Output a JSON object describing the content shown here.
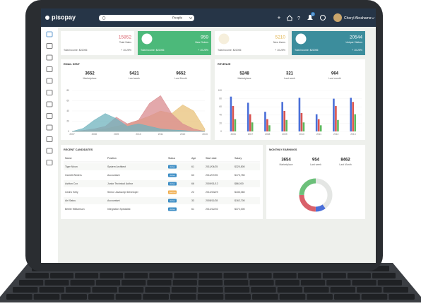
{
  "header": {
    "logo": "pisopay",
    "search_filter": "People",
    "user_name": "Cheryl Abrahams",
    "notification_count": "2"
  },
  "stats": [
    {
      "value": "15852",
      "label": "Total Sales",
      "income": "Total Income: $22006",
      "change": "+ 10.25%"
    },
    {
      "value": "959",
      "label": "New Orders",
      "income": "Total Income: $22006",
      "change": "+ 10.25%"
    },
    {
      "value": "5210",
      "label": "New Users",
      "income": "Total Income: $22006",
      "change": "+ 10.25%"
    },
    {
      "value": "20544",
      "label": "Unique Visitors",
      "income": "Total Income: $22006",
      "change": "+ 10.25%"
    }
  ],
  "email_sent": {
    "title": "EMAIL SENT",
    "summary": [
      {
        "value": 3652,
        "label": "Marketplace"
      },
      {
        "value": 5421,
        "label": "Last week"
      },
      {
        "value": 9652,
        "label": "Last Month"
      }
    ],
    "chart": {
      "type": "area",
      "x": [
        2007,
        2007.5,
        2008,
        2008.5,
        2009,
        2009.5,
        2010,
        2010.5,
        2011,
        2011.5,
        2012,
        2012.5,
        2013
      ],
      "xlim": [
        2007,
        2013
      ],
      "xticks": [
        2007,
        2008,
        2009,
        2010,
        2011,
        2012,
        2013
      ],
      "ylim": [
        0,
        80
      ],
      "yticks": [
        0,
        20,
        40,
        60,
        80
      ],
      "series": [
        {
          "color": "#e8c27a",
          "values": [
            0,
            0,
            2,
            5,
            10,
            15,
            22,
            30,
            40,
            35,
            52,
            40,
            5
          ]
        },
        {
          "color": "#d98b8f",
          "values": [
            0,
            2,
            5,
            10,
            28,
            15,
            22,
            55,
            70,
            35,
            15,
            5,
            0
          ]
        },
        {
          "color": "#6fb3bd",
          "values": [
            0,
            6,
            22,
            35,
            25,
            10,
            15,
            10,
            5,
            3,
            2,
            0,
            0
          ]
        }
      ]
    }
  },
  "revenue": {
    "title": "REVENUE",
    "summary": [
      {
        "value": 5248,
        "label": "Marketplace"
      },
      {
        "value": 321,
        "label": "Last week"
      },
      {
        "value": 964,
        "label": "Last month"
      }
    ],
    "chart": {
      "type": "bar",
      "categories": [
        "2006",
        "2007",
        "2008",
        "2009",
        "2010",
        "2011",
        "2012",
        "2013"
      ],
      "ylim": [
        0,
        100
      ],
      "yticks": [
        0,
        20,
        40,
        60,
        80,
        100
      ],
      "series": [
        {
          "color": "#4a6fd8",
          "values": [
            85,
            70,
            48,
            72,
            82,
            42,
            80,
            82
          ]
        },
        {
          "color": "#d9534f",
          "values": [
            62,
            42,
            30,
            50,
            45,
            30,
            62,
            72
          ]
        },
        {
          "color": "#5cb85c",
          "values": [
            30,
            22,
            15,
            28,
            22,
            15,
            28,
            42
          ]
        }
      ]
    }
  },
  "candidates": {
    "title": "RECENT CANDIDATES",
    "columns": [
      "Name",
      "Position",
      "Status",
      "Age",
      "Start date",
      "Salary"
    ],
    "rows": [
      [
        "Tiger Nixon",
        "System Architect",
        "Active",
        "61",
        "2011/04/25",
        "$320,800"
      ],
      [
        "Garrett Winters",
        "Accountant",
        "Active",
        "63",
        "2011/07/25",
        "$170,750"
      ],
      [
        "Ashton Cox",
        "Junior Technical Author",
        "Active",
        "66",
        "2009/01/12",
        "$86,000"
      ],
      [
        "Cedric Kelly",
        "Senior Javascript Developer",
        "Inactive",
        "22",
        "2012/03/29",
        "$433,060"
      ],
      [
        "Airi Satou",
        "Accountant",
        "Active",
        "33",
        "2008/11/28",
        "$162,700"
      ],
      [
        "Brielle Williamson",
        "Integration Specialist",
        "Active",
        "61",
        "2012/12/02",
        "$372,000"
      ]
    ]
  },
  "earnings": {
    "title": "MONTHLY EARNINGS",
    "summary": [
      {
        "value": 3654,
        "label": "Marketplace"
      },
      {
        "value": 954,
        "label": "Last week"
      },
      {
        "value": 8462,
        "label": "Last Month"
      }
    ],
    "chart": {
      "type": "donut",
      "values": [
        40,
        10,
        25,
        25
      ],
      "colors": [
        "#e4e6e4",
        "#4a6fd8",
        "#d9606a",
        "#6cc07a"
      ]
    }
  }
}
